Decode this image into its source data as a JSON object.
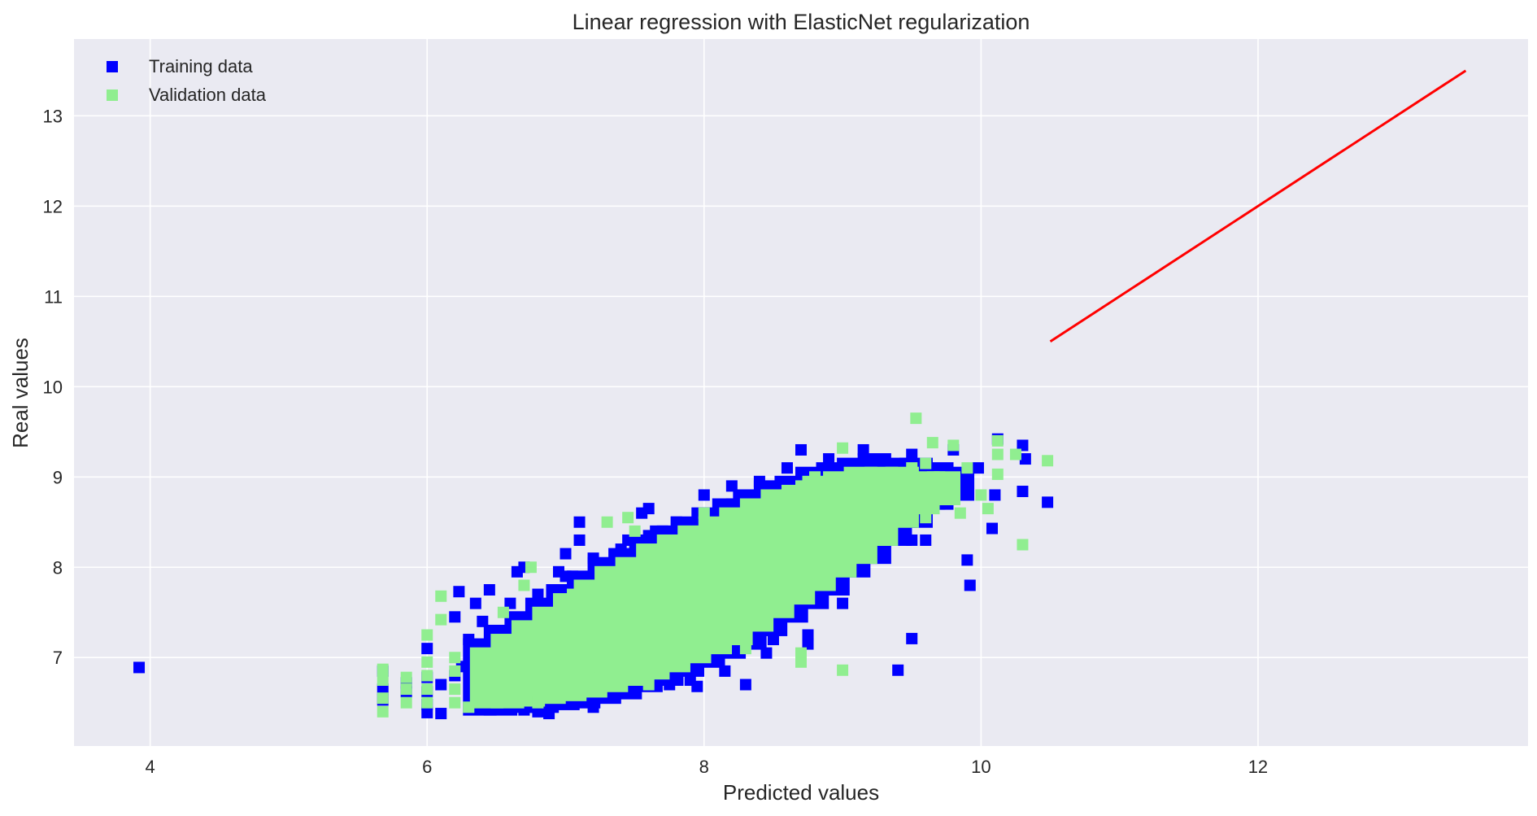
{
  "chart_data": {
    "type": "scatter",
    "title": "Linear regression with ElasticNet regularization",
    "xlabel": "Predicted values",
    "ylabel": "Real values",
    "xlim": [
      3.45,
      13.95
    ],
    "ylim": [
      6.02,
      13.85
    ],
    "xticks": [
      4,
      6,
      8,
      10,
      12
    ],
    "yticks": [
      7,
      8,
      9,
      10,
      11,
      12,
      13
    ],
    "grid": true,
    "legend_position": "top-left",
    "background": "#EAEAF2",
    "series": [
      {
        "name": "Training data",
        "color": "#0000FF",
        "marker": "square",
        "points": [
          [
            3.92,
            6.89
          ],
          [
            5.68,
            6.53
          ],
          [
            5.68,
            6.65
          ],
          [
            5.68,
            6.85
          ],
          [
            5.85,
            6.62
          ],
          [
            5.85,
            6.72
          ],
          [
            6.0,
            6.39
          ],
          [
            6.0,
            6.48
          ],
          [
            6.0,
            6.62
          ],
          [
            6.0,
            6.78
          ],
          [
            6.0,
            7.1
          ],
          [
            6.1,
            6.38
          ],
          [
            6.1,
            6.7
          ],
          [
            6.2,
            7.45
          ],
          [
            6.23,
            7.73
          ],
          [
            6.2,
            6.8
          ],
          [
            6.35,
            7.6
          ],
          [
            6.45,
            7.75
          ],
          [
            6.55,
            7.15
          ],
          [
            6.65,
            7.95
          ],
          [
            6.7,
            8.0
          ],
          [
            6.8,
            6.4
          ],
          [
            6.88,
            6.38
          ],
          [
            6.95,
            7.95
          ],
          [
            7.0,
            8.15
          ],
          [
            7.05,
            7.9
          ],
          [
            7.1,
            8.5
          ],
          [
            7.1,
            8.3
          ],
          [
            7.2,
            6.45
          ],
          [
            7.3,
            7.2
          ],
          [
            7.45,
            8.3
          ],
          [
            7.55,
            8.6
          ],
          [
            7.6,
            8.65
          ],
          [
            7.7,
            8.4
          ],
          [
            7.75,
            6.7
          ],
          [
            7.9,
            6.75
          ],
          [
            7.95,
            6.68
          ],
          [
            8.0,
            8.8
          ],
          [
            8.15,
            6.85
          ],
          [
            8.2,
            8.9
          ],
          [
            8.3,
            7.15
          ],
          [
            8.3,
            6.7
          ],
          [
            8.45,
            7.05
          ],
          [
            8.5,
            7.2
          ],
          [
            8.75,
            7.25
          ],
          [
            8.75,
            7.15
          ],
          [
            8.7,
            9.3
          ],
          [
            8.85,
            8.3
          ],
          [
            9.0,
            7.78
          ],
          [
            9.0,
            7.6
          ],
          [
            9.1,
            8.2
          ],
          [
            9.15,
            9.3
          ],
          [
            9.3,
            8.15
          ],
          [
            9.4,
            6.86
          ],
          [
            9.5,
            7.21
          ],
          [
            9.5,
            8.3
          ],
          [
            9.6,
            8.3
          ],
          [
            9.75,
            9.0
          ],
          [
            9.9,
            8.08
          ],
          [
            9.92,
            7.8
          ],
          [
            9.98,
            9.1
          ],
          [
            10.08,
            8.43
          ],
          [
            10.1,
            8.8
          ],
          [
            10.12,
            9.42
          ],
          [
            10.3,
            9.35
          ],
          [
            10.32,
            9.2
          ],
          [
            10.3,
            8.84
          ],
          [
            10.48,
            8.72
          ],
          [
            9.8,
            9.3
          ],
          [
            9.5,
            9.25
          ],
          [
            9.3,
            9.15
          ],
          [
            9.1,
            9.1
          ],
          [
            8.9,
            9.2
          ],
          [
            8.6,
            9.1
          ],
          [
            8.4,
            8.95
          ],
          [
            8.2,
            8.7
          ],
          [
            8.0,
            8.6
          ],
          [
            7.8,
            8.5
          ],
          [
            7.6,
            8.35
          ],
          [
            7.4,
            8.2
          ],
          [
            7.2,
            8.1
          ],
          [
            7.0,
            7.9
          ],
          [
            6.8,
            7.7
          ],
          [
            6.6,
            7.6
          ],
          [
            6.4,
            7.4
          ],
          [
            6.3,
            7.2
          ],
          [
            6.25,
            6.9
          ],
          [
            6.35,
            6.55
          ],
          [
            6.5,
            6.45
          ],
          [
            6.7,
            6.42
          ],
          [
            6.9,
            6.5
          ],
          [
            7.1,
            6.55
          ],
          [
            7.3,
            6.65
          ],
          [
            7.5,
            6.78
          ],
          [
            7.7,
            6.9
          ],
          [
            7.9,
            7.05
          ],
          [
            8.1,
            7.2
          ],
          [
            8.3,
            7.35
          ],
          [
            8.5,
            7.5
          ],
          [
            8.7,
            7.7
          ],
          [
            8.9,
            7.9
          ],
          [
            9.1,
            8.05
          ],
          [
            9.3,
            8.3
          ],
          [
            9.5,
            8.5
          ],
          [
            9.7,
            8.7
          ],
          [
            9.9,
            8.9
          ],
          [
            7.5,
            7.4
          ],
          [
            7.8,
            7.7
          ],
          [
            8.1,
            8.0
          ],
          [
            8.4,
            8.3
          ],
          [
            8.7,
            8.6
          ],
          [
            7.2,
            7.1
          ],
          [
            6.9,
            6.9
          ],
          [
            6.6,
            6.7
          ]
        ]
      },
      {
        "name": "Validation data",
        "color": "#90EE90",
        "marker": "square",
        "points": [
          [
            5.68,
            6.4
          ],
          [
            5.68,
            6.55
          ],
          [
            5.68,
            6.75
          ],
          [
            5.68,
            6.87
          ],
          [
            5.85,
            6.5
          ],
          [
            5.85,
            6.65
          ],
          [
            5.85,
            6.78
          ],
          [
            6.0,
            6.5
          ],
          [
            6.0,
            6.65
          ],
          [
            6.0,
            6.8
          ],
          [
            6.0,
            6.95
          ],
          [
            6.0,
            7.25
          ],
          [
            6.1,
            7.42
          ],
          [
            6.1,
            7.68
          ],
          [
            6.2,
            6.5
          ],
          [
            6.2,
            6.65
          ],
          [
            6.2,
            6.85
          ],
          [
            6.2,
            7.0
          ],
          [
            6.55,
            7.5
          ],
          [
            6.7,
            7.8
          ],
          [
            6.75,
            8.0
          ],
          [
            7.0,
            7.45
          ],
          [
            7.05,
            7.7
          ],
          [
            7.3,
            8.5
          ],
          [
            7.45,
            8.55
          ],
          [
            7.5,
            8.4
          ],
          [
            7.6,
            6.7
          ],
          [
            7.7,
            6.9
          ],
          [
            8.0,
            8.6
          ],
          [
            8.2,
            7.3
          ],
          [
            8.3,
            7.1
          ],
          [
            8.5,
            7.6
          ],
          [
            8.7,
            6.95
          ],
          [
            8.7,
            7.05
          ],
          [
            8.75,
            8.0
          ],
          [
            8.9,
            8.05
          ],
          [
            9.0,
            6.86
          ],
          [
            9.0,
            9.32
          ],
          [
            9.2,
            8.4
          ],
          [
            9.3,
            8.3
          ],
          [
            9.53,
            9.65
          ],
          [
            9.6,
            9.15
          ],
          [
            9.6,
            8.55
          ],
          [
            9.65,
            9.38
          ],
          [
            9.8,
            9.35
          ],
          [
            9.85,
            8.6
          ],
          [
            10.0,
            8.8
          ],
          [
            10.05,
            8.65
          ],
          [
            10.12,
            9.4
          ],
          [
            10.12,
            9.25
          ],
          [
            10.12,
            9.03
          ],
          [
            10.25,
            9.25
          ],
          [
            10.3,
            8.25
          ],
          [
            10.48,
            9.18
          ],
          [
            6.3,
            6.45
          ],
          [
            6.4,
            6.6
          ],
          [
            6.5,
            6.8
          ],
          [
            6.6,
            7.0
          ],
          [
            6.7,
            7.2
          ],
          [
            6.8,
            6.5
          ],
          [
            6.9,
            6.7
          ],
          [
            7.0,
            6.9
          ],
          [
            7.1,
            7.1
          ],
          [
            7.2,
            7.3
          ],
          [
            7.3,
            7.5
          ],
          [
            7.4,
            7.6
          ],
          [
            7.5,
            7.7
          ],
          [
            7.6,
            7.8
          ],
          [
            7.7,
            7.9
          ],
          [
            7.8,
            8.0
          ],
          [
            7.9,
            8.1
          ],
          [
            8.0,
            8.2
          ],
          [
            8.1,
            8.3
          ],
          [
            8.2,
            8.4
          ],
          [
            8.3,
            8.5
          ],
          [
            8.4,
            8.6
          ],
          [
            8.5,
            8.7
          ],
          [
            8.6,
            8.8
          ],
          [
            8.7,
            8.9
          ],
          [
            8.8,
            9.0
          ],
          [
            8.9,
            8.9
          ],
          [
            9.0,
            8.8
          ],
          [
            9.1,
            8.7
          ],
          [
            9.2,
            8.9
          ],
          [
            9.3,
            9.0
          ],
          [
            9.4,
            9.0
          ],
          [
            9.5,
            9.1
          ],
          [
            9.7,
            9.0
          ],
          [
            9.9,
            9.1
          ],
          [
            7.0,
            7.4
          ],
          [
            7.3,
            7.1
          ],
          [
            7.6,
            7.4
          ],
          [
            7.9,
            7.6
          ],
          [
            8.2,
            7.9
          ],
          [
            8.5,
            8.1
          ],
          [
            8.8,
            8.4
          ],
          [
            9.1,
            8.6
          ],
          [
            6.6,
            6.55
          ],
          [
            6.9,
            6.85
          ],
          [
            7.2,
            6.9
          ],
          [
            7.5,
            7.15
          ]
        ]
      }
    ],
    "line": {
      "color": "#FF0000",
      "points": [
        [
          10.5,
          10.5
        ],
        [
          13.5,
          13.5
        ]
      ]
    },
    "dense_bands": {
      "training": [
        [
          6.3,
          6.42,
          7.15
        ],
        [
          6.45,
          6.42,
          7.3
        ],
        [
          6.6,
          6.45,
          7.45
        ],
        [
          6.75,
          6.45,
          7.6
        ],
        [
          6.9,
          6.48,
          7.75
        ],
        [
          7.05,
          6.5,
          7.9
        ],
        [
          7.2,
          6.55,
          8.05
        ],
        [
          7.35,
          6.6,
          8.15
        ],
        [
          7.5,
          6.68,
          8.3
        ],
        [
          7.65,
          6.75,
          8.4
        ],
        [
          7.8,
          6.85,
          8.5
        ],
        [
          7.95,
          6.95,
          8.6
        ],
        [
          8.1,
          7.05,
          8.7
        ],
        [
          8.25,
          7.15,
          8.8
        ],
        [
          8.4,
          7.3,
          8.9
        ],
        [
          8.55,
          7.45,
          8.95
        ],
        [
          8.7,
          7.6,
          9.05
        ],
        [
          8.85,
          7.75,
          9.1
        ],
        [
          9.0,
          7.95,
          9.15
        ],
        [
          9.15,
          8.1,
          9.2
        ],
        [
          9.3,
          8.3,
          9.15
        ],
        [
          9.45,
          8.5,
          9.15
        ],
        [
          9.6,
          8.7,
          9.1
        ],
        [
          9.75,
          8.8,
          9.05
        ]
      ],
      "validation": [
        [
          6.35,
          6.5,
          7.05
        ],
        [
          6.5,
          6.5,
          7.2
        ],
        [
          6.65,
          6.52,
          7.35
        ],
        [
          6.8,
          6.55,
          7.5
        ],
        [
          6.95,
          6.58,
          7.65
        ],
        [
          7.1,
          6.62,
          7.8
        ],
        [
          7.25,
          6.68,
          7.95
        ],
        [
          7.4,
          6.75,
          8.05
        ],
        [
          7.55,
          6.82,
          8.2
        ],
        [
          7.7,
          6.9,
          8.3
        ],
        [
          7.85,
          7.0,
          8.4
        ],
        [
          8.0,
          7.1,
          8.5
        ],
        [
          8.15,
          7.2,
          8.6
        ],
        [
          8.3,
          7.35,
          8.7
        ],
        [
          8.45,
          7.5,
          8.8
        ],
        [
          8.6,
          7.65,
          8.85
        ],
        [
          8.75,
          7.8,
          8.95
        ],
        [
          8.9,
          7.95,
          9.0
        ],
        [
          9.05,
          8.1,
          9.05
        ],
        [
          9.2,
          8.3,
          9.05
        ],
        [
          9.35,
          8.5,
          9.05
        ],
        [
          9.5,
          8.65,
          9.0
        ],
        [
          9.65,
          8.75,
          9.0
        ]
      ]
    }
  }
}
